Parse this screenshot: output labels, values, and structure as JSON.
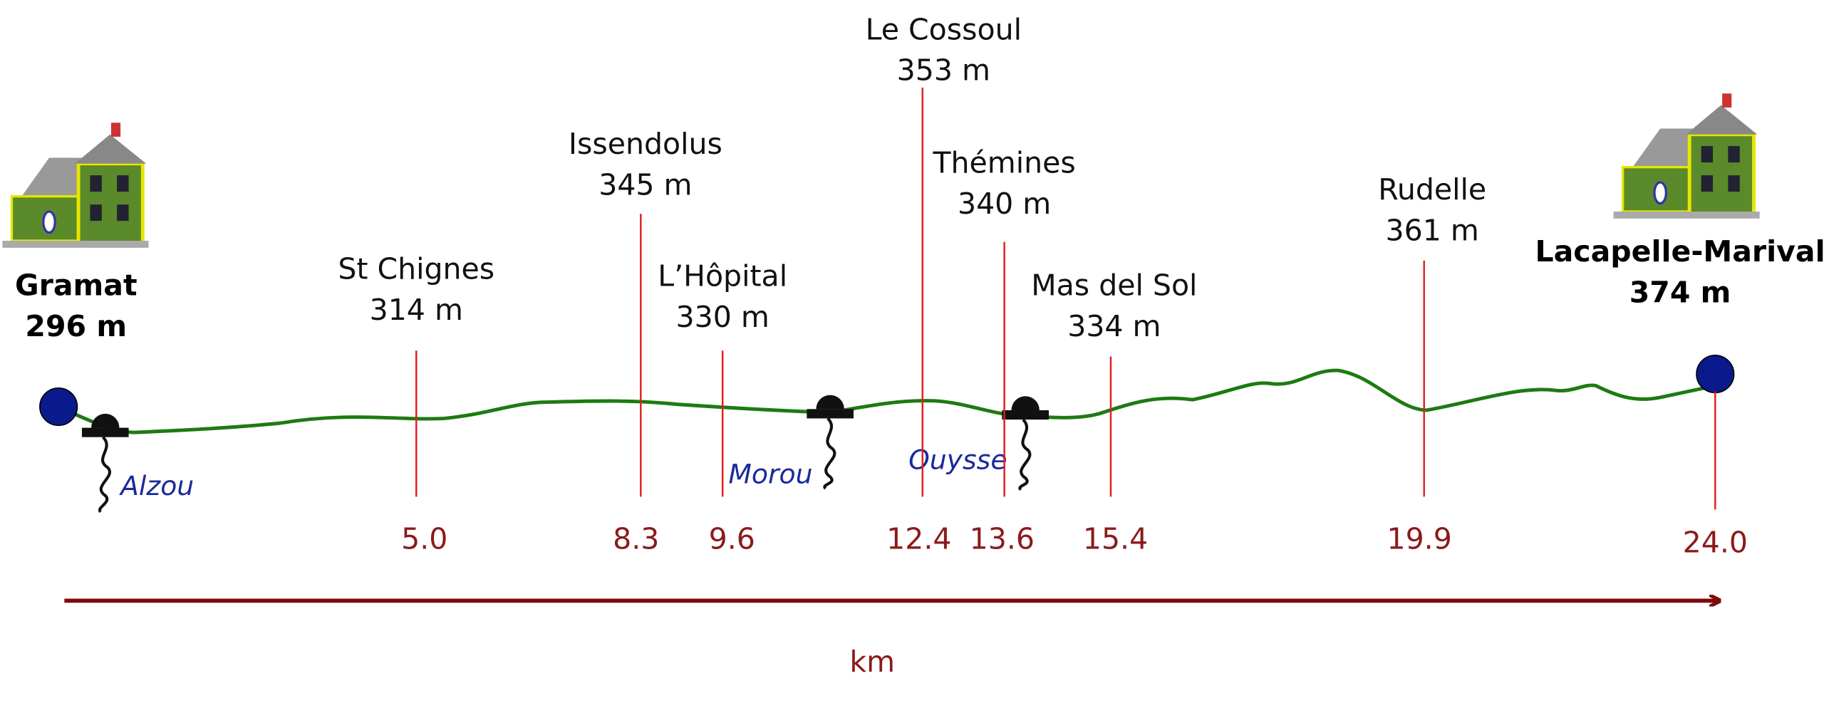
{
  "start": {
    "name": "Gramat",
    "altitude": "296 m"
  },
  "waypoints": [
    {
      "name": "St Chignes",
      "altitude": "314 m",
      "km": "5.0"
    },
    {
      "name": "Issendolus",
      "altitude": "345 m",
      "km": "8.3"
    },
    {
      "name": "L’Hôpital",
      "altitude": "330 m",
      "km": "9.6"
    },
    {
      "name": "Le Cossoul",
      "altitude": "353 m",
      "km": "12.4"
    },
    {
      "name": "Thémines",
      "altitude": "340 m",
      "km": "13.6"
    },
    {
      "name": "Mas del Sol",
      "altitude": "334 m",
      "km": "15.4"
    },
    {
      "name": "Rudelle",
      "altitude": "361 m",
      "km": "19.9"
    }
  ],
  "end": {
    "name": "Lacapelle-Marival",
    "altitude": "374 m",
    "km": "24.0"
  },
  "rivers": [
    "Alzou",
    "Morou",
    "Ouysse"
  ],
  "axis_label": "km"
}
